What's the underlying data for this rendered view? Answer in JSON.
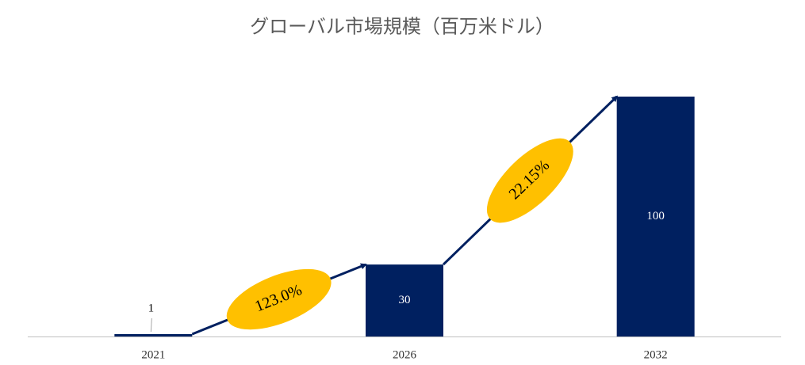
{
  "chart_data": {
    "type": "bar",
    "title": "グローバル市場規模（百万米ドル）",
    "categories": [
      "2021",
      "2026",
      "2032"
    ],
    "values": [
      1,
      30,
      100
    ],
    "color": "#002060",
    "ylim": [
      0,
      100
    ],
    "annotations": [
      "123.0%",
      "22.15%"
    ],
    "annotation_color": "#ffc000",
    "arrow_color": "#002060"
  }
}
